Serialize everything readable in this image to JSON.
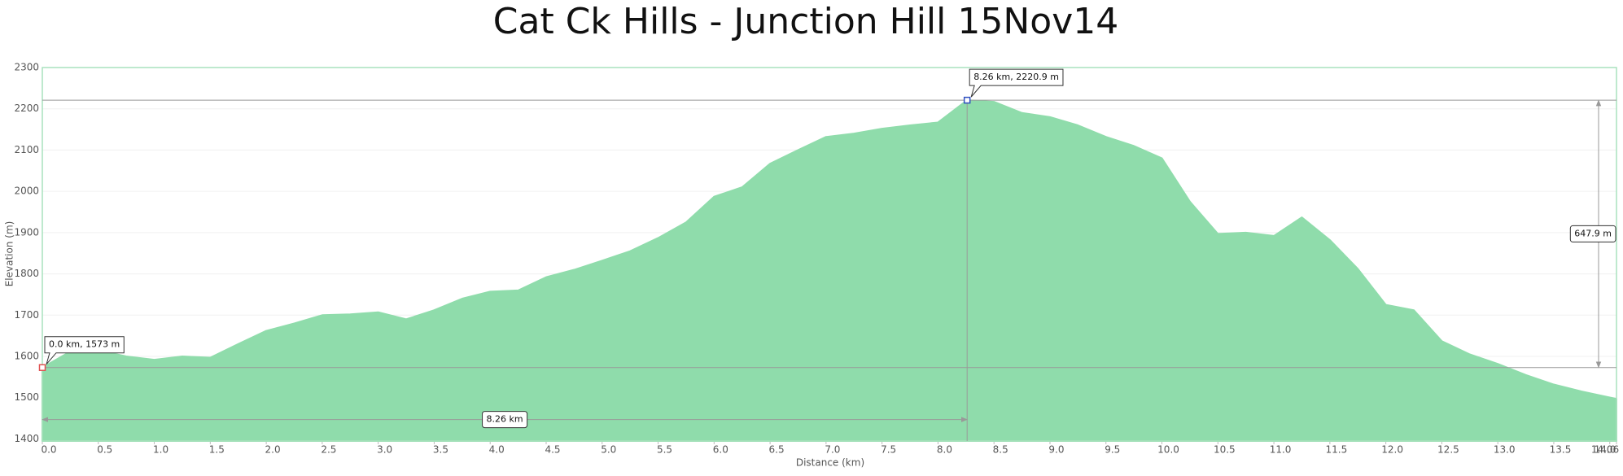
{
  "chart_data": {
    "type": "area",
    "title": "Cat Ck Hills - Junction Hill 15Nov14",
    "x_label": "Distance   (km)",
    "y_label": "Elevation (m)",
    "color": "#8fdcab",
    "x": [
      0,
      0.25,
      0.5,
      0.75,
      1.0,
      1.25,
      1.5,
      1.75,
      2.0,
      2.25,
      2.5,
      2.75,
      3.0,
      3.25,
      3.5,
      3.75,
      4.0,
      4.25,
      4.5,
      4.75,
      5.0,
      5.25,
      5.5,
      5.75,
      6.0,
      6.25,
      6.5,
      6.75,
      7.0,
      7.25,
      7.5,
      7.75,
      8.0,
      8.26,
      8.5,
      8.75,
      9.0,
      9.25,
      9.5,
      9.75,
      10.0,
      10.25,
      10.5,
      10.75,
      11.0,
      11.25,
      11.5,
      11.75,
      12.0,
      12.25,
      12.5,
      12.75,
      13.0,
      13.25,
      13.5,
      13.75,
      14.06
    ],
    "values": [
      1573,
      1612,
      1615,
      1600,
      1592,
      1600,
      1597,
      1630,
      1662,
      1680,
      1700,
      1702,
      1707,
      1690,
      1712,
      1740,
      1757,
      1760,
      1792,
      1810,
      1832,
      1855,
      1887,
      1925,
      1987,
      2010,
      2067,
      2100,
      2132,
      2140,
      2152,
      2160,
      2167,
      2220.9,
      2217,
      2190,
      2180,
      2160,
      2132,
      2110,
      2080,
      1975,
      1897,
      1900,
      1892,
      1937,
      1882,
      1812,
      1725,
      1712,
      1637,
      1605,
      1582,
      1555,
      1532,
      1515,
      1497
    ],
    "xlim": [
      0,
      14.06
    ],
    "ylim": [
      1395,
      2300
    ],
    "xticks": [
      {
        "value": 0,
        "label": "0.0"
      },
      0.5,
      {
        "value": 1,
        "label": "1.0"
      },
      1.5,
      {
        "value": 2,
        "label": "2.0"
      },
      2.5,
      {
        "value": 3,
        "label": "3.0"
      },
      3.5,
      {
        "value": 4,
        "label": "4.0"
      },
      4.5,
      {
        "value": 5,
        "label": "5.0"
      },
      5.5,
      {
        "value": 6,
        "label": "6.0"
      },
      6.5,
      {
        "value": 7,
        "label": "7.0"
      },
      7.5,
      {
        "value": 8,
        "label": "8.0"
      },
      8.5,
      {
        "value": 9,
        "label": "9.0"
      },
      9.5,
      {
        "value": 10,
        "label": "10.0"
      },
      10.5,
      {
        "value": 11,
        "label": "11.0"
      },
      11.5,
      {
        "value": 12,
        "label": "12.0"
      },
      12.5,
      {
        "value": 13,
        "label": "13.0"
      },
      13.5,
      {
        "value": 14,
        "label": "14.0"
      },
      14.06
    ],
    "yticks": [
      1400,
      1500,
      1600,
      1700,
      1800,
      1900,
      2000,
      2100,
      2200,
      2300
    ],
    "grid": true,
    "markers": [
      {
        "x": 0,
        "y": 1573,
        "label": "0.0 km, 1573 m",
        "color": "#e05050"
      },
      {
        "x": 8.26,
        "y": 2220.9,
        "label": "8.26 km, 2220.9 m",
        "color": "#3050c0"
      }
    ],
    "measures": [
      {
        "direction": "horizontal",
        "from": 0,
        "to": 8.26,
        "at": 1447,
        "label": "8.26 km"
      },
      {
        "direction": "vertical",
        "from": 1573,
        "to": 2220.9,
        "at": 13.9,
        "label": "647.9 m",
        "value": 647.9
      }
    ]
  }
}
